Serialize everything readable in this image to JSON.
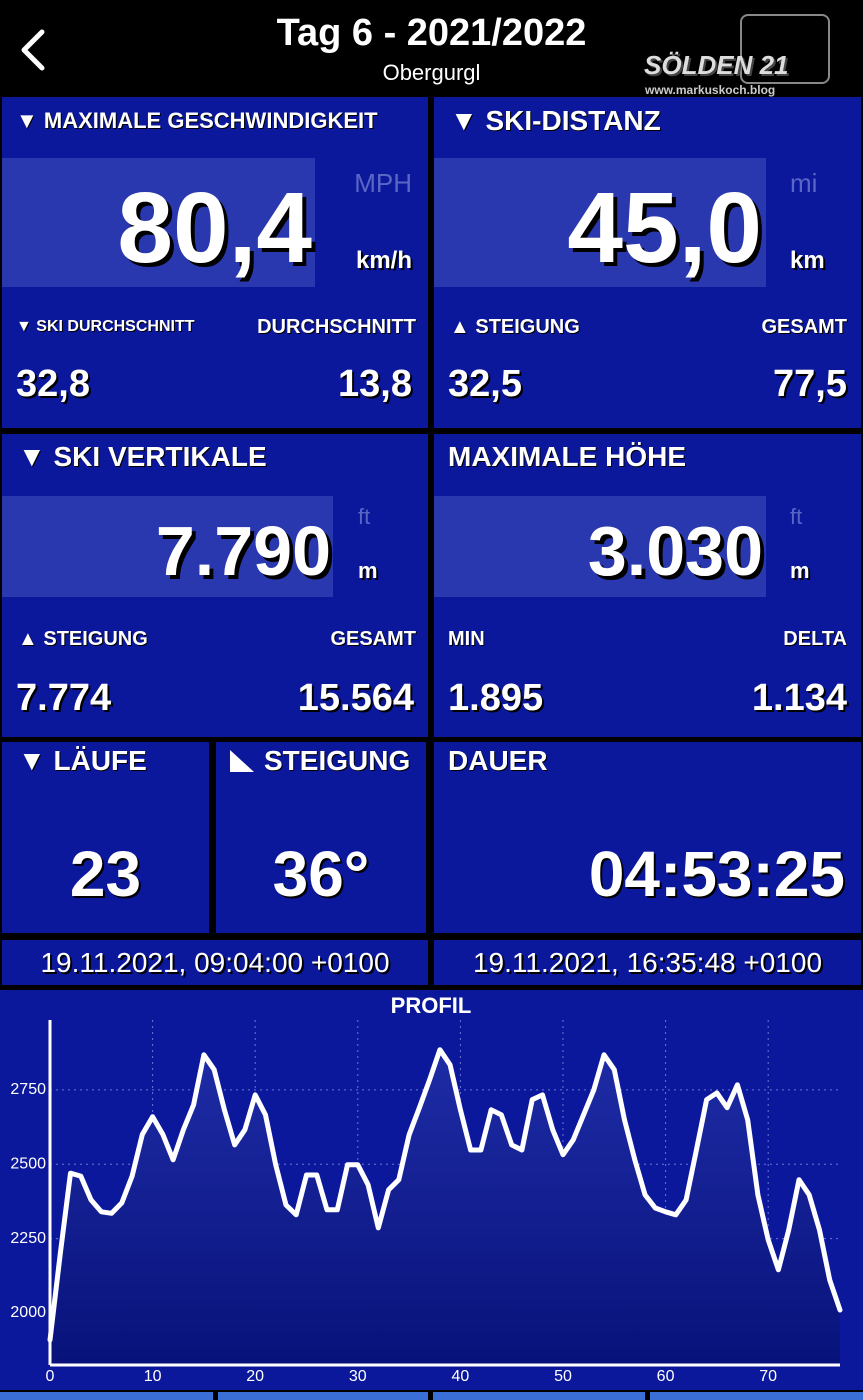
{
  "header": {
    "title": "Tag 6 - 2021/2022",
    "subtitle": "Obergurgl",
    "watermark": [
      "SÖLDEN 21",
      "www.markuskoch.blog"
    ]
  },
  "panels": [
    {
      "title": "▼ MAXIMALE GESCHWINDIGKEIT",
      "value": "80,4",
      "unit_alt": "MPH",
      "unit": "km/h",
      "left_label": "▼ SKI DURCHSCHNITT",
      "right_label": "DURCHSCHNITT",
      "left_value": "32,8",
      "right_value": "13,8"
    },
    {
      "title": "▼ SKI-DISTANZ",
      "value": "45,0",
      "unit_alt": "mi",
      "unit": "km",
      "left_label": "▲ STEIGUNG",
      "right_label": "GESAMT",
      "left_value": "32,5",
      "right_value": "77,5"
    },
    {
      "title": "▼ SKI VERTIKALE",
      "value": "7.790",
      "unit_alt": "ft",
      "unit": "m",
      "left_label": "▲ STEIGUNG",
      "right_label": "GESAMT",
      "left_value": "7.774",
      "right_value": "15.564"
    },
    {
      "title": "MAXIMALE HÖHE",
      "value": "3.030",
      "unit_alt": "ft",
      "unit": "m",
      "left_label": "MIN",
      "right_label": "DELTA",
      "left_value": "1.895",
      "right_value": "1.134"
    },
    {
      "title": "▼ LÄUFE",
      "value": "23"
    },
    {
      "title": "STEIGUNG",
      "value": "36°"
    },
    {
      "title": "DAUER",
      "value": "04:53:25"
    }
  ],
  "times": {
    "start": "19.11.2021, 09:04:00 +0100",
    "end": "19.11.2021, 16:35:48 +0100"
  },
  "chart_data": {
    "type": "line",
    "title": "PROFIL",
    "color": "#ffffff",
    "grid": true,
    "x": [
      0,
      1,
      2,
      3,
      4,
      5,
      6,
      7,
      8,
      9,
      10,
      11,
      12,
      13,
      14,
      15,
      16,
      17,
      18,
      19,
      20,
      21,
      22,
      23,
      24,
      25,
      26,
      27,
      28,
      29,
      30,
      31,
      32,
      33,
      34,
      35,
      36,
      37,
      38,
      39,
      40,
      41,
      42,
      43,
      44,
      45,
      46,
      47,
      48,
      49,
      50,
      51,
      52,
      53,
      54,
      55,
      56,
      57,
      58,
      59,
      60,
      61,
      62,
      63,
      64,
      65,
      66,
      67,
      68,
      69,
      70,
      71,
      72,
      73,
      74,
      75,
      76,
      77
    ],
    "values": [
      1909,
      2200,
      2470,
      2460,
      2380,
      2340,
      2335,
      2370,
      2460,
      2600,
      2660,
      2600,
      2515,
      2616,
      2700,
      2868,
      2818,
      2683,
      2565,
      2616,
      2733,
      2666,
      2498,
      2363,
      2330,
      2464,
      2464,
      2347,
      2347,
      2498,
      2498,
      2431,
      2286,
      2414,
      2448,
      2599,
      2690,
      2784,
      2885,
      2834,
      2683,
      2548,
      2548,
      2683,
      2666,
      2565,
      2548,
      2717,
      2733,
      2616,
      2532,
      2582,
      2666,
      2750,
      2868,
      2818,
      2649,
      2515,
      2397,
      2353,
      2340,
      2330,
      2380,
      2548,
      2717,
      2740,
      2690,
      2767,
      2649,
      2397,
      2246,
      2145,
      2279,
      2448,
      2397,
      2279,
      2111,
      2010
    ],
    "xlim": [
      0,
      77
    ],
    "ylim": [
      1825,
      2985
    ],
    "xticks": [
      0,
      10,
      20,
      30,
      40,
      50,
      60,
      70
    ],
    "yticks": [
      2000,
      2250,
      2500,
      2750
    ]
  }
}
